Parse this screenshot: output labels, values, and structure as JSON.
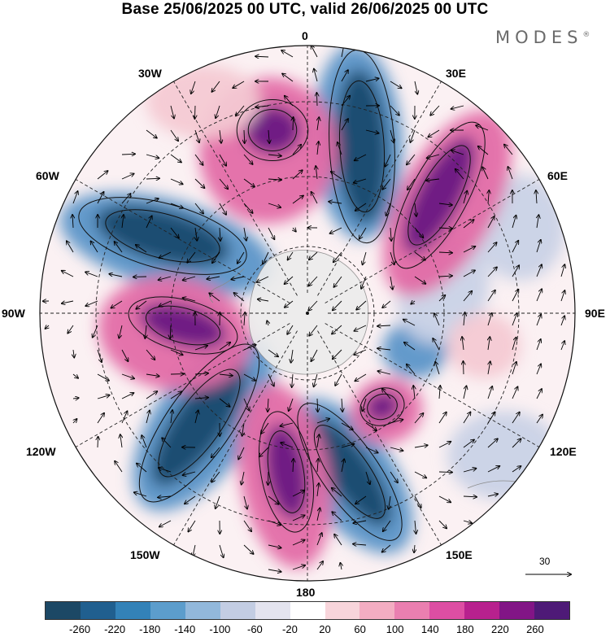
{
  "header": {
    "title": "Base 25/06/2025 00 UTC, valid 26/06/2025 00 UTC",
    "brand": "MODES",
    "brand_mark": "®"
  },
  "map": {
    "projection": "south polar stereographic",
    "longitude_labels": {
      "top": "0",
      "top_right": "30E",
      "right_upper": "60E",
      "right": "90E",
      "right_lower": "120E",
      "bottom_right": "150E",
      "bottom": "180",
      "bottom_left": "150W",
      "left_lower": "120W",
      "left": "90W",
      "left_upper": "60W",
      "top_left": "30W"
    },
    "wind_reference_label": "30",
    "field_colors": {
      "strong_negative": "#1b4a6e",
      "negative": "#5b95c8",
      "weak_negative": "#c9d2e6",
      "neutral": "#ffffff",
      "weak_positive": "#f4c9d3",
      "positive": "#e36ca7",
      "strong_positive": "#6a1b83"
    }
  },
  "colorbar": {
    "colors": [
      "#1c4865",
      "#205f8f",
      "#3382b8",
      "#5c9dcc",
      "#92b8db",
      "#c3cde3",
      "#e4e4ef",
      "#ffffff",
      "#f8d5db",
      "#f3adc2",
      "#ea7fb0",
      "#dd4ea3",
      "#b8218e",
      "#821586",
      "#4e1a77"
    ],
    "ticks": [
      "-260",
      "-220",
      "-180",
      "-140",
      "-100",
      "-60",
      "-20",
      "20",
      "60",
      "100",
      "140",
      "180",
      "220",
      "260"
    ]
  }
}
